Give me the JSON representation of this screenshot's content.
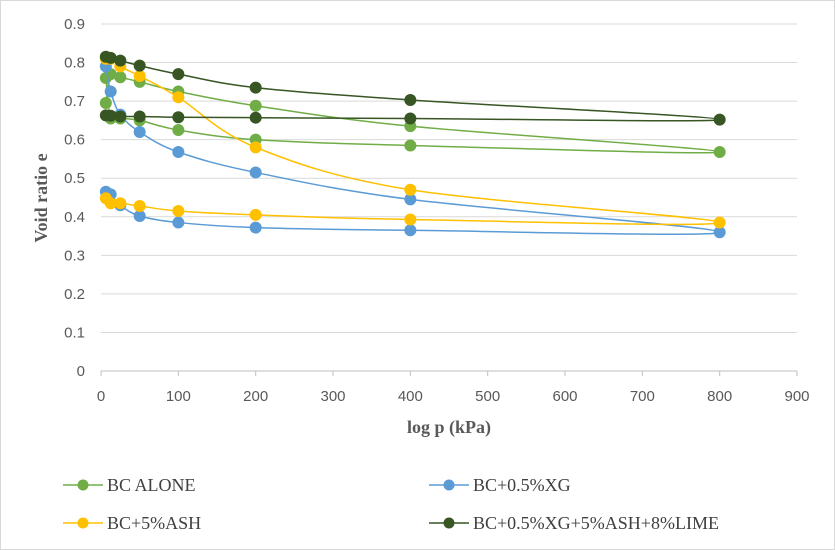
{
  "chart_data": {
    "type": "scatter",
    "title": "",
    "xlabel": "log p (kPa)",
    "ylabel": "Void ratio e",
    "xlim": [
      0,
      900
    ],
    "ylim": [
      0,
      0.9
    ],
    "xticks": [
      0,
      100,
      200,
      300,
      400,
      500,
      600,
      700,
      800,
      900
    ],
    "yticks": [
      0,
      0.1,
      0.2,
      0.3,
      0.4,
      0.5,
      0.6,
      0.7,
      0.8,
      0.9
    ],
    "xtick_labels": [
      "0",
      "100",
      "200",
      "300",
      "400",
      "500",
      "600",
      "700",
      "800",
      "900"
    ],
    "ytick_labels": [
      "0",
      "0.1",
      "0.2",
      "0.3",
      "0.4",
      "0.5",
      "0.6",
      "0.7",
      "0.8",
      "0.9"
    ],
    "grid": "horizontal",
    "legend_position": "bottom",
    "series": [
      {
        "name": "BC ALONE",
        "color": "#70ad47",
        "loading": [
          [
            6.25,
            0.695
          ],
          [
            12.5,
            0.77
          ],
          [
            25,
            0.762
          ],
          [
            50,
            0.75
          ],
          [
            100,
            0.725
          ],
          [
            200,
            0.688
          ],
          [
            400,
            0.635
          ],
          [
            800,
            0.568
          ]
        ],
        "unloading": [
          [
            800,
            0.568
          ],
          [
            400,
            0.585
          ],
          [
            200,
            0.6
          ],
          [
            100,
            0.625
          ],
          [
            50,
            0.65
          ],
          [
            25,
            0.655
          ],
          [
            12.5,
            0.655
          ],
          [
            6.25,
            0.76
          ]
        ]
      },
      {
        "name": "BC+0.5%XG",
        "color": "#5b9bd5",
        "loading": [
          [
            6.25,
            0.79
          ],
          [
            12.5,
            0.725
          ],
          [
            25,
            0.665
          ],
          [
            50,
            0.62
          ],
          [
            100,
            0.568
          ],
          [
            200,
            0.515
          ],
          [
            400,
            0.445
          ],
          [
            800,
            0.36
          ]
        ],
        "unloading": [
          [
            800,
            0.36
          ],
          [
            400,
            0.365
          ],
          [
            200,
            0.372
          ],
          [
            100,
            0.385
          ],
          [
            50,
            0.402
          ],
          [
            25,
            0.43
          ],
          [
            12.5,
            0.458
          ],
          [
            6.25,
            0.465
          ]
        ]
      },
      {
        "name": "BC+5%ASH",
        "color": "#ffc000",
        "loading": [
          [
            6.25,
            0.81
          ],
          [
            12.5,
            0.81
          ],
          [
            25,
            0.79
          ],
          [
            50,
            0.765
          ],
          [
            100,
            0.71
          ],
          [
            200,
            0.58
          ],
          [
            400,
            0.47
          ],
          [
            800,
            0.385
          ]
        ],
        "unloading": [
          [
            800,
            0.385
          ],
          [
            400,
            0.393
          ],
          [
            200,
            0.405
          ],
          [
            100,
            0.415
          ],
          [
            50,
            0.428
          ],
          [
            25,
            0.435
          ],
          [
            12.5,
            0.435
          ],
          [
            6.25,
            0.448
          ]
        ]
      },
      {
        "name": "BC+0.5%XG+5%ASH+8%LIME",
        "color": "#375623",
        "loading": [
          [
            6.25,
            0.815
          ],
          [
            12.5,
            0.812
          ],
          [
            25,
            0.805
          ],
          [
            50,
            0.792
          ],
          [
            100,
            0.77
          ],
          [
            200,
            0.735
          ],
          [
            400,
            0.703
          ],
          [
            800,
            0.652
          ]
        ],
        "unloading": [
          [
            800,
            0.652
          ],
          [
            400,
            0.655
          ],
          [
            200,
            0.657
          ],
          [
            100,
            0.658
          ],
          [
            50,
            0.66
          ],
          [
            25,
            0.66
          ],
          [
            12.5,
            0.662
          ],
          [
            6.25,
            0.663
          ]
        ]
      }
    ]
  }
}
